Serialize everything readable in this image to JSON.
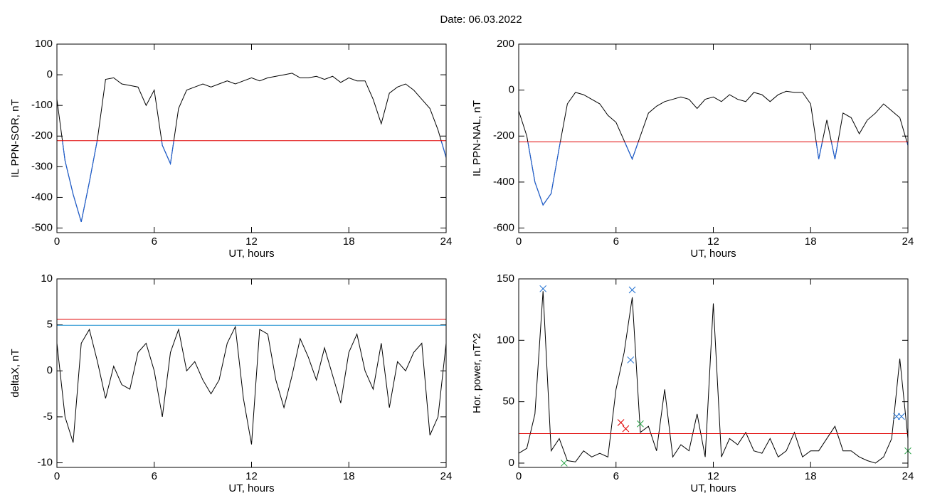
{
  "title": "Date:  06.03.2022",
  "chart_data": [
    {
      "type": "line",
      "ylabel": "IL PPN-SOR, nT",
      "xlabel": "UT, hours",
      "xlim": [
        0,
        24
      ],
      "xticks": [
        0,
        6,
        12,
        18,
        24
      ],
      "ylim": [
        -515,
        100
      ],
      "yticks": [
        -500,
        -400,
        -300,
        -200,
        -100,
        0,
        100
      ],
      "x": [
        0,
        0.5,
        1,
        1.5,
        2,
        2.5,
        3,
        3.5,
        4,
        4.5,
        5,
        5.5,
        6,
        6.5,
        7,
        7.5,
        8,
        8.5,
        9,
        9.5,
        10,
        10.5,
        11,
        11.5,
        12,
        12.5,
        13,
        13.5,
        14,
        14.5,
        15,
        15.5,
        16,
        16.5,
        17,
        17.5,
        18,
        18.5,
        19,
        19.5,
        20,
        20.5,
        21,
        21.5,
        22,
        22.5,
        23,
        23.5,
        24
      ],
      "series": [
        {
          "color": "#000000",
          "below_color": "#1f5fd0",
          "values": [
            -80,
            -280,
            -390,
            -480,
            -350,
            -210,
            -15,
            -10,
            -30,
            -35,
            -40,
            -100,
            -50,
            -230,
            -290,
            -110,
            -50,
            -40,
            -30,
            -40,
            -30,
            -20,
            -30,
            -20,
            -10,
            -20,
            -10,
            -5,
            0,
            5,
            -10,
            -10,
            -5,
            -15,
            -5,
            -25,
            -10,
            -20,
            -20,
            -80,
            -160,
            -60,
            -40,
            -30,
            -50,
            -80,
            -110,
            -180,
            -270
          ]
        }
      ],
      "hlines": [
        {
          "value": -215,
          "color": "#e00000"
        }
      ]
    },
    {
      "type": "line",
      "ylabel": "IL PPN-NAL, nT",
      "xlabel": "UT, hours",
      "xlim": [
        0,
        24
      ],
      "xticks": [
        0,
        6,
        12,
        18,
        24
      ],
      "ylim": [
        -620,
        200
      ],
      "yticks": [
        -600,
        -400,
        -200,
        0,
        200
      ],
      "x": [
        0,
        0.5,
        1,
        1.5,
        2,
        2.5,
        3,
        3.5,
        4,
        4.5,
        5,
        5.5,
        6,
        6.5,
        7,
        7.5,
        8,
        8.5,
        9,
        9.5,
        10,
        10.5,
        11,
        11.5,
        12,
        12.5,
        13,
        13.5,
        14,
        14.5,
        15,
        15.5,
        16,
        16.5,
        17,
        17.5,
        18,
        18.5,
        19,
        19.5,
        20,
        20.5,
        21,
        21.5,
        22,
        22.5,
        23,
        23.5,
        24
      ],
      "series": [
        {
          "color": "#000000",
          "below_color": "#1f5fd0",
          "values": [
            -90,
            -200,
            -400,
            -500,
            -450,
            -250,
            -60,
            -10,
            -20,
            -40,
            -60,
            -110,
            -140,
            -220,
            -300,
            -200,
            -100,
            -70,
            -50,
            -40,
            -30,
            -40,
            -80,
            -40,
            -30,
            -50,
            -20,
            -40,
            -50,
            -10,
            -20,
            -50,
            -20,
            -5,
            -10,
            -10,
            -60,
            -300,
            -130,
            -300,
            -100,
            -120,
            -190,
            -130,
            -100,
            -60,
            -90,
            -120,
            -240
          ]
        }
      ],
      "hlines": [
        {
          "value": -225,
          "color": "#e00000"
        }
      ]
    },
    {
      "type": "line",
      "ylabel": "deltaX, nT",
      "xlabel": "UT, hours",
      "xlim": [
        0,
        24
      ],
      "xticks": [
        0,
        6,
        12,
        18,
        24
      ],
      "ylim": [
        -10.5,
        10
      ],
      "yticks": [
        -10,
        -5,
        0,
        5,
        10
      ],
      "x": [
        0,
        0.5,
        1,
        1.5,
        2,
        2.5,
        3,
        3.5,
        4,
        4.5,
        5,
        5.5,
        6,
        6.5,
        7,
        7.5,
        8,
        8.5,
        9,
        9.5,
        10,
        10.5,
        11,
        11.5,
        12,
        12.5,
        13,
        13.5,
        14,
        14.5,
        15,
        15.5,
        16,
        16.5,
        17,
        17.5,
        18,
        18.5,
        19,
        19.5,
        20,
        20.5,
        21,
        21.5,
        22,
        22.5,
        23,
        23.5,
        24
      ],
      "series": [
        {
          "color": "#000000",
          "values": [
            3,
            -5,
            -7.8,
            3,
            4.5,
            1,
            -3,
            0.5,
            -1.5,
            -2,
            2,
            3,
            0,
            -5,
            2,
            4.5,
            0,
            1,
            -1,
            -2.5,
            -1,
            3,
            4.8,
            -3,
            -8,
            4.5,
            4,
            -1,
            -4,
            -0.5,
            3.5,
            1.5,
            -1,
            2.5,
            -0.5,
            -3.5,
            2,
            4,
            0,
            -2,
            3,
            -4,
            1,
            0,
            2,
            3,
            -7,
            -5,
            3
          ]
        }
      ],
      "hlines": [
        {
          "value": 5.6,
          "color": "#e00000"
        },
        {
          "value": 4.95,
          "color": "#1f8fd0"
        }
      ]
    },
    {
      "type": "line",
      "ylabel": "Hor. power, nT^2",
      "xlabel": "UT, hours",
      "xlim": [
        0,
        24
      ],
      "xticks": [
        0,
        6,
        12,
        18,
        24
      ],
      "ylim": [
        -3.5,
        150
      ],
      "yticks": [
        0,
        50,
        100,
        150
      ],
      "x": [
        0,
        0.5,
        1,
        1.5,
        2,
        2.5,
        3,
        3.5,
        4,
        4.5,
        5,
        5.5,
        6,
        6.5,
        7,
        7.5,
        8,
        8.5,
        9,
        9.5,
        10,
        10.5,
        11,
        11.5,
        12,
        12.5,
        13,
        13.5,
        14,
        14.5,
        15,
        15.5,
        16,
        16.5,
        17,
        17.5,
        18,
        18.5,
        19,
        19.5,
        20,
        20.5,
        21,
        21.5,
        22,
        22.5,
        23,
        23.5,
        24
      ],
      "series": [
        {
          "color": "#000000",
          "values": [
            8,
            12,
            40,
            140,
            10,
            20,
            2,
            1,
            10,
            5,
            8,
            5,
            60,
            90,
            135,
            25,
            30,
            10,
            60,
            5,
            15,
            10,
            40,
            5,
            130,
            5,
            20,
            15,
            25,
            10,
            8,
            20,
            5,
            10,
            25,
            5,
            10,
            10,
            20,
            30,
            10,
            10,
            5,
            2,
            0,
            5,
            20,
            85,
            20
          ]
        }
      ],
      "hlines": [
        {
          "value": 24,
          "color": "#e00000"
        }
      ],
      "markers": [
        {
          "color": "#1f6fd0",
          "x": [
            1.5,
            7,
            6.9,
            23.3,
            23.6
          ],
          "y": [
            142,
            141,
            84,
            38,
            38
          ]
        },
        {
          "color": "#e00000",
          "x": [
            6.3,
            6.6
          ],
          "y": [
            33,
            28
          ]
        },
        {
          "color": "#20a040",
          "x": [
            7.5,
            2.8,
            24
          ],
          "y": [
            32,
            0,
            10
          ]
        }
      ]
    }
  ]
}
